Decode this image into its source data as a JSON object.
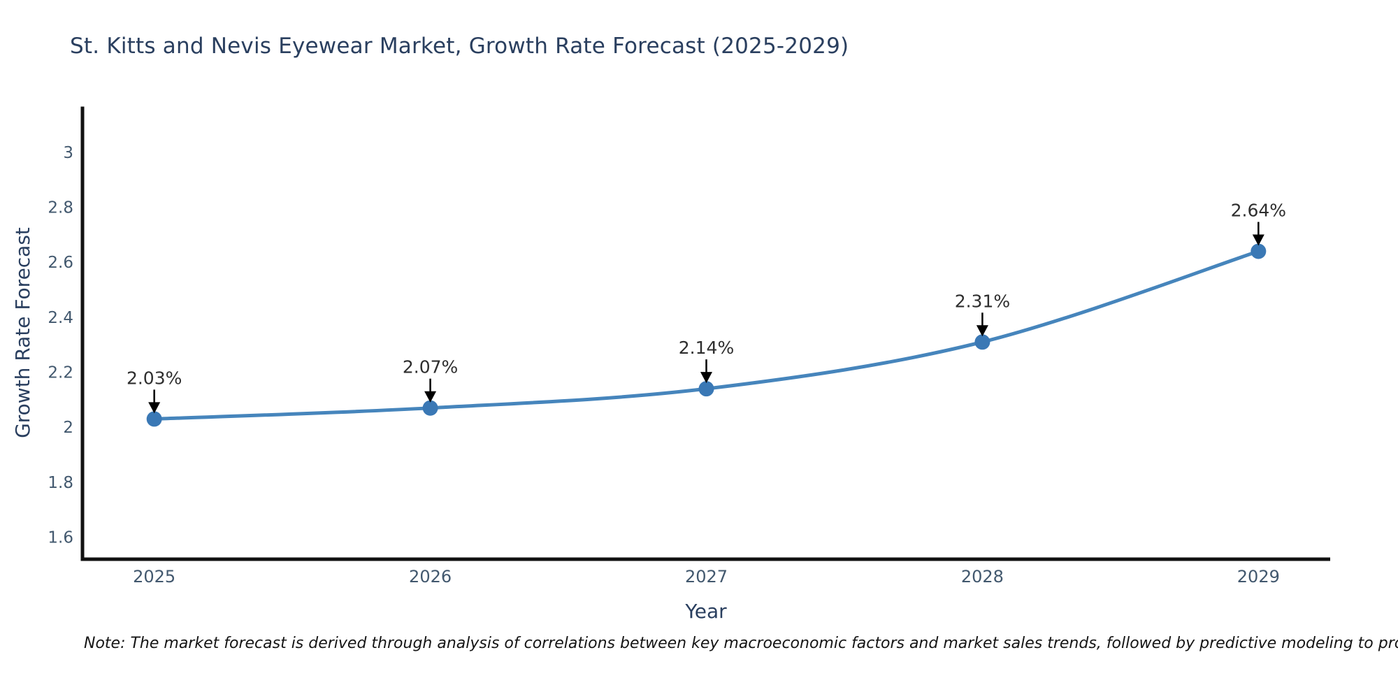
{
  "title": "St. Kitts and Nevis Eyewear Market, Growth Rate Forecast (2025-2029)",
  "note": "Note: The market forecast is derived through analysis of correlations between key macroeconomic factors and market sales trends, followed by predictive modeling to project future sales",
  "chart_data": {
    "type": "line",
    "title": "St. Kitts and Nevis Eyewear Market, Growth Rate Forecast (2025-2029)",
    "xlabel": "Year",
    "ylabel": "Growth Rate Forecast",
    "x": [
      2025,
      2026,
      2027,
      2028,
      2029
    ],
    "values": [
      2.03,
      2.07,
      2.14,
      2.31,
      2.64
    ],
    "point_labels": [
      "2.03%",
      "2.07%",
      "2.14%",
      "2.31%",
      "2.64%"
    ],
    "x_tick_labels": [
      "2025",
      "2026",
      "2027",
      "2028",
      "2029"
    ],
    "y_tick_values": [
      3,
      2.8,
      2.6,
      2.4,
      2.2,
      2,
      1.8,
      1.6
    ],
    "y_tick_labels": [
      "3",
      "2.8",
      "2.6",
      "2.4",
      "2.2",
      "2",
      "1.8",
      "1.6"
    ],
    "ylim": [
      1.52,
      3.16
    ],
    "xlim": [
      2024.74,
      2029.26
    ],
    "grid": false,
    "legend": "none",
    "smooth_curve": true,
    "annotation_arrows": true,
    "colors": {
      "line": "#4685bc",
      "marker": "#3a78b5",
      "axis": "#111111",
      "title_text": "#2a3f5f",
      "tick_text": "#42586e",
      "annotation_text": "#2e2e2e",
      "arrow": "#000000",
      "background": "#ffffff"
    }
  }
}
